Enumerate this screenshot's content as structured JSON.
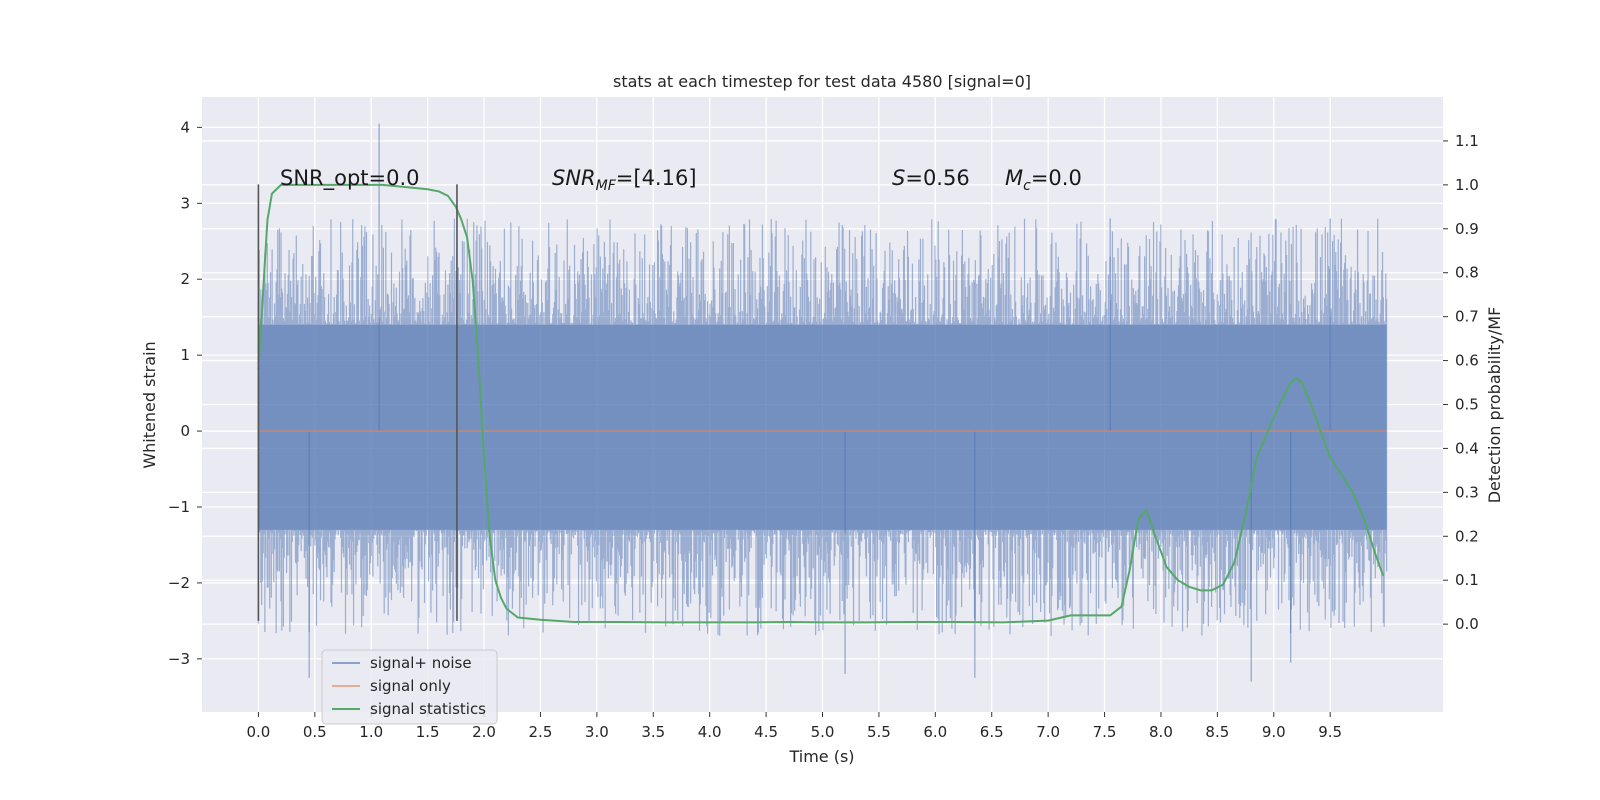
{
  "chart_data": {
    "type": "line",
    "title": "stats at each timestep for test data 4580 [signal=0]",
    "xlabel": "Time (s)",
    "ylabel": "Whitened strain",
    "y2label": "Detection probability/MF",
    "xlim": [
      -0.5,
      10.5
    ],
    "ylim": [
      -3.7,
      4.4
    ],
    "y2lim": [
      -0.2,
      1.2
    ],
    "x_ticks": [
      "0.0",
      "0.5",
      "1.0",
      "1.5",
      "2.0",
      "2.5",
      "3.0",
      "3.5",
      "4.0",
      "4.5",
      "5.0",
      "5.5",
      "6.0",
      "6.5",
      "7.0",
      "7.5",
      "8.0",
      "8.5",
      "9.0",
      "9.5"
    ],
    "y_ticks": [
      "−3",
      "−2",
      "−1",
      "0",
      "1",
      "2",
      "3",
      "4"
    ],
    "y2_ticks": [
      "0.0",
      "0.1",
      "0.2",
      "0.3",
      "0.4",
      "0.5",
      "0.6",
      "0.7",
      "0.8",
      "0.9",
      "1.0",
      "1.1"
    ],
    "grid": true,
    "legend_position": "lower-left",
    "annotations": {
      "snr_opt": "SNR_opt=0.0",
      "snr_mf_prefix": "SNR",
      "snr_mf_sub": "MF",
      "snr_mf_value": "=[4.16]",
      "s_symbol": "S",
      "s_value": "=0.56",
      "mc_symbol": "M",
      "mc_sub": "c",
      "mc_value": "=0.0"
    },
    "markers_x": [
      0.0,
      1.76
    ],
    "colors": {
      "noise": "#4c72b0",
      "signal": "#dd8452",
      "stats": "#55a868",
      "marker": "#555555",
      "plot_bg": "#eaeaf2"
    },
    "series": [
      {
        "name": "signal+ noise",
        "kind": "noise",
        "x_range": [
          0.0,
          10.0
        ],
        "band_y": [
          -1.3,
          1.4
        ],
        "spikes": [
          {
            "x": 1.07,
            "y": 4.05
          },
          {
            "x": 6.35,
            "y": -3.25
          },
          {
            "x": 8.8,
            "y": -3.3
          },
          {
            "x": 5.2,
            "y": -3.2
          },
          {
            "x": 0.45,
            "y": -3.25
          },
          {
            "x": 7.55,
            "y": 2.8
          },
          {
            "x": 9.5,
            "y": 2.8
          },
          {
            "x": 9.15,
            "y": -3.05
          }
        ]
      },
      {
        "name": "signal only",
        "kind": "signal",
        "x": [
          0.0,
          10.0
        ],
        "y": [
          0.0,
          0.0
        ]
      },
      {
        "name": "signal statistics",
        "kind": "stats",
        "axis": "right",
        "x": [
          0.0,
          0.08,
          0.12,
          0.2,
          0.3,
          0.5,
          0.8,
          1.1,
          1.3,
          1.5,
          1.6,
          1.68,
          1.75,
          1.8,
          1.85,
          1.9,
          1.95,
          2.0,
          2.05,
          2.1,
          2.15,
          2.2,
          2.3,
          2.5,
          2.8,
          3.2,
          3.6,
          4.0,
          4.4,
          4.7,
          5.0,
          5.4,
          5.8,
          6.2,
          6.6,
          7.0,
          7.2,
          7.4,
          7.55,
          7.65,
          7.72,
          7.8,
          7.87,
          7.95,
          8.05,
          8.15,
          8.25,
          8.35,
          8.45,
          8.55,
          8.65,
          8.75,
          8.85,
          8.95,
          9.05,
          9.15,
          9.2,
          9.25,
          9.3,
          9.4,
          9.5,
          9.6,
          9.7,
          9.8,
          9.9,
          9.97
        ],
        "y": [
          0.58,
          0.92,
          0.98,
          1.0,
          1.0,
          1.0,
          1.0,
          1.0,
          0.995,
          0.99,
          0.985,
          0.975,
          0.95,
          0.92,
          0.88,
          0.78,
          0.6,
          0.38,
          0.2,
          0.1,
          0.06,
          0.035,
          0.015,
          0.01,
          0.005,
          0.005,
          0.004,
          0.004,
          0.004,
          0.005,
          0.004,
          0.004,
          0.005,
          0.005,
          0.004,
          0.008,
          0.02,
          0.02,
          0.02,
          0.04,
          0.12,
          0.24,
          0.26,
          0.2,
          0.13,
          0.1,
          0.085,
          0.077,
          0.077,
          0.09,
          0.14,
          0.25,
          0.38,
          0.44,
          0.5,
          0.55,
          0.56,
          0.55,
          0.52,
          0.45,
          0.38,
          0.34,
          0.3,
          0.24,
          0.16,
          0.11
        ]
      }
    ]
  }
}
